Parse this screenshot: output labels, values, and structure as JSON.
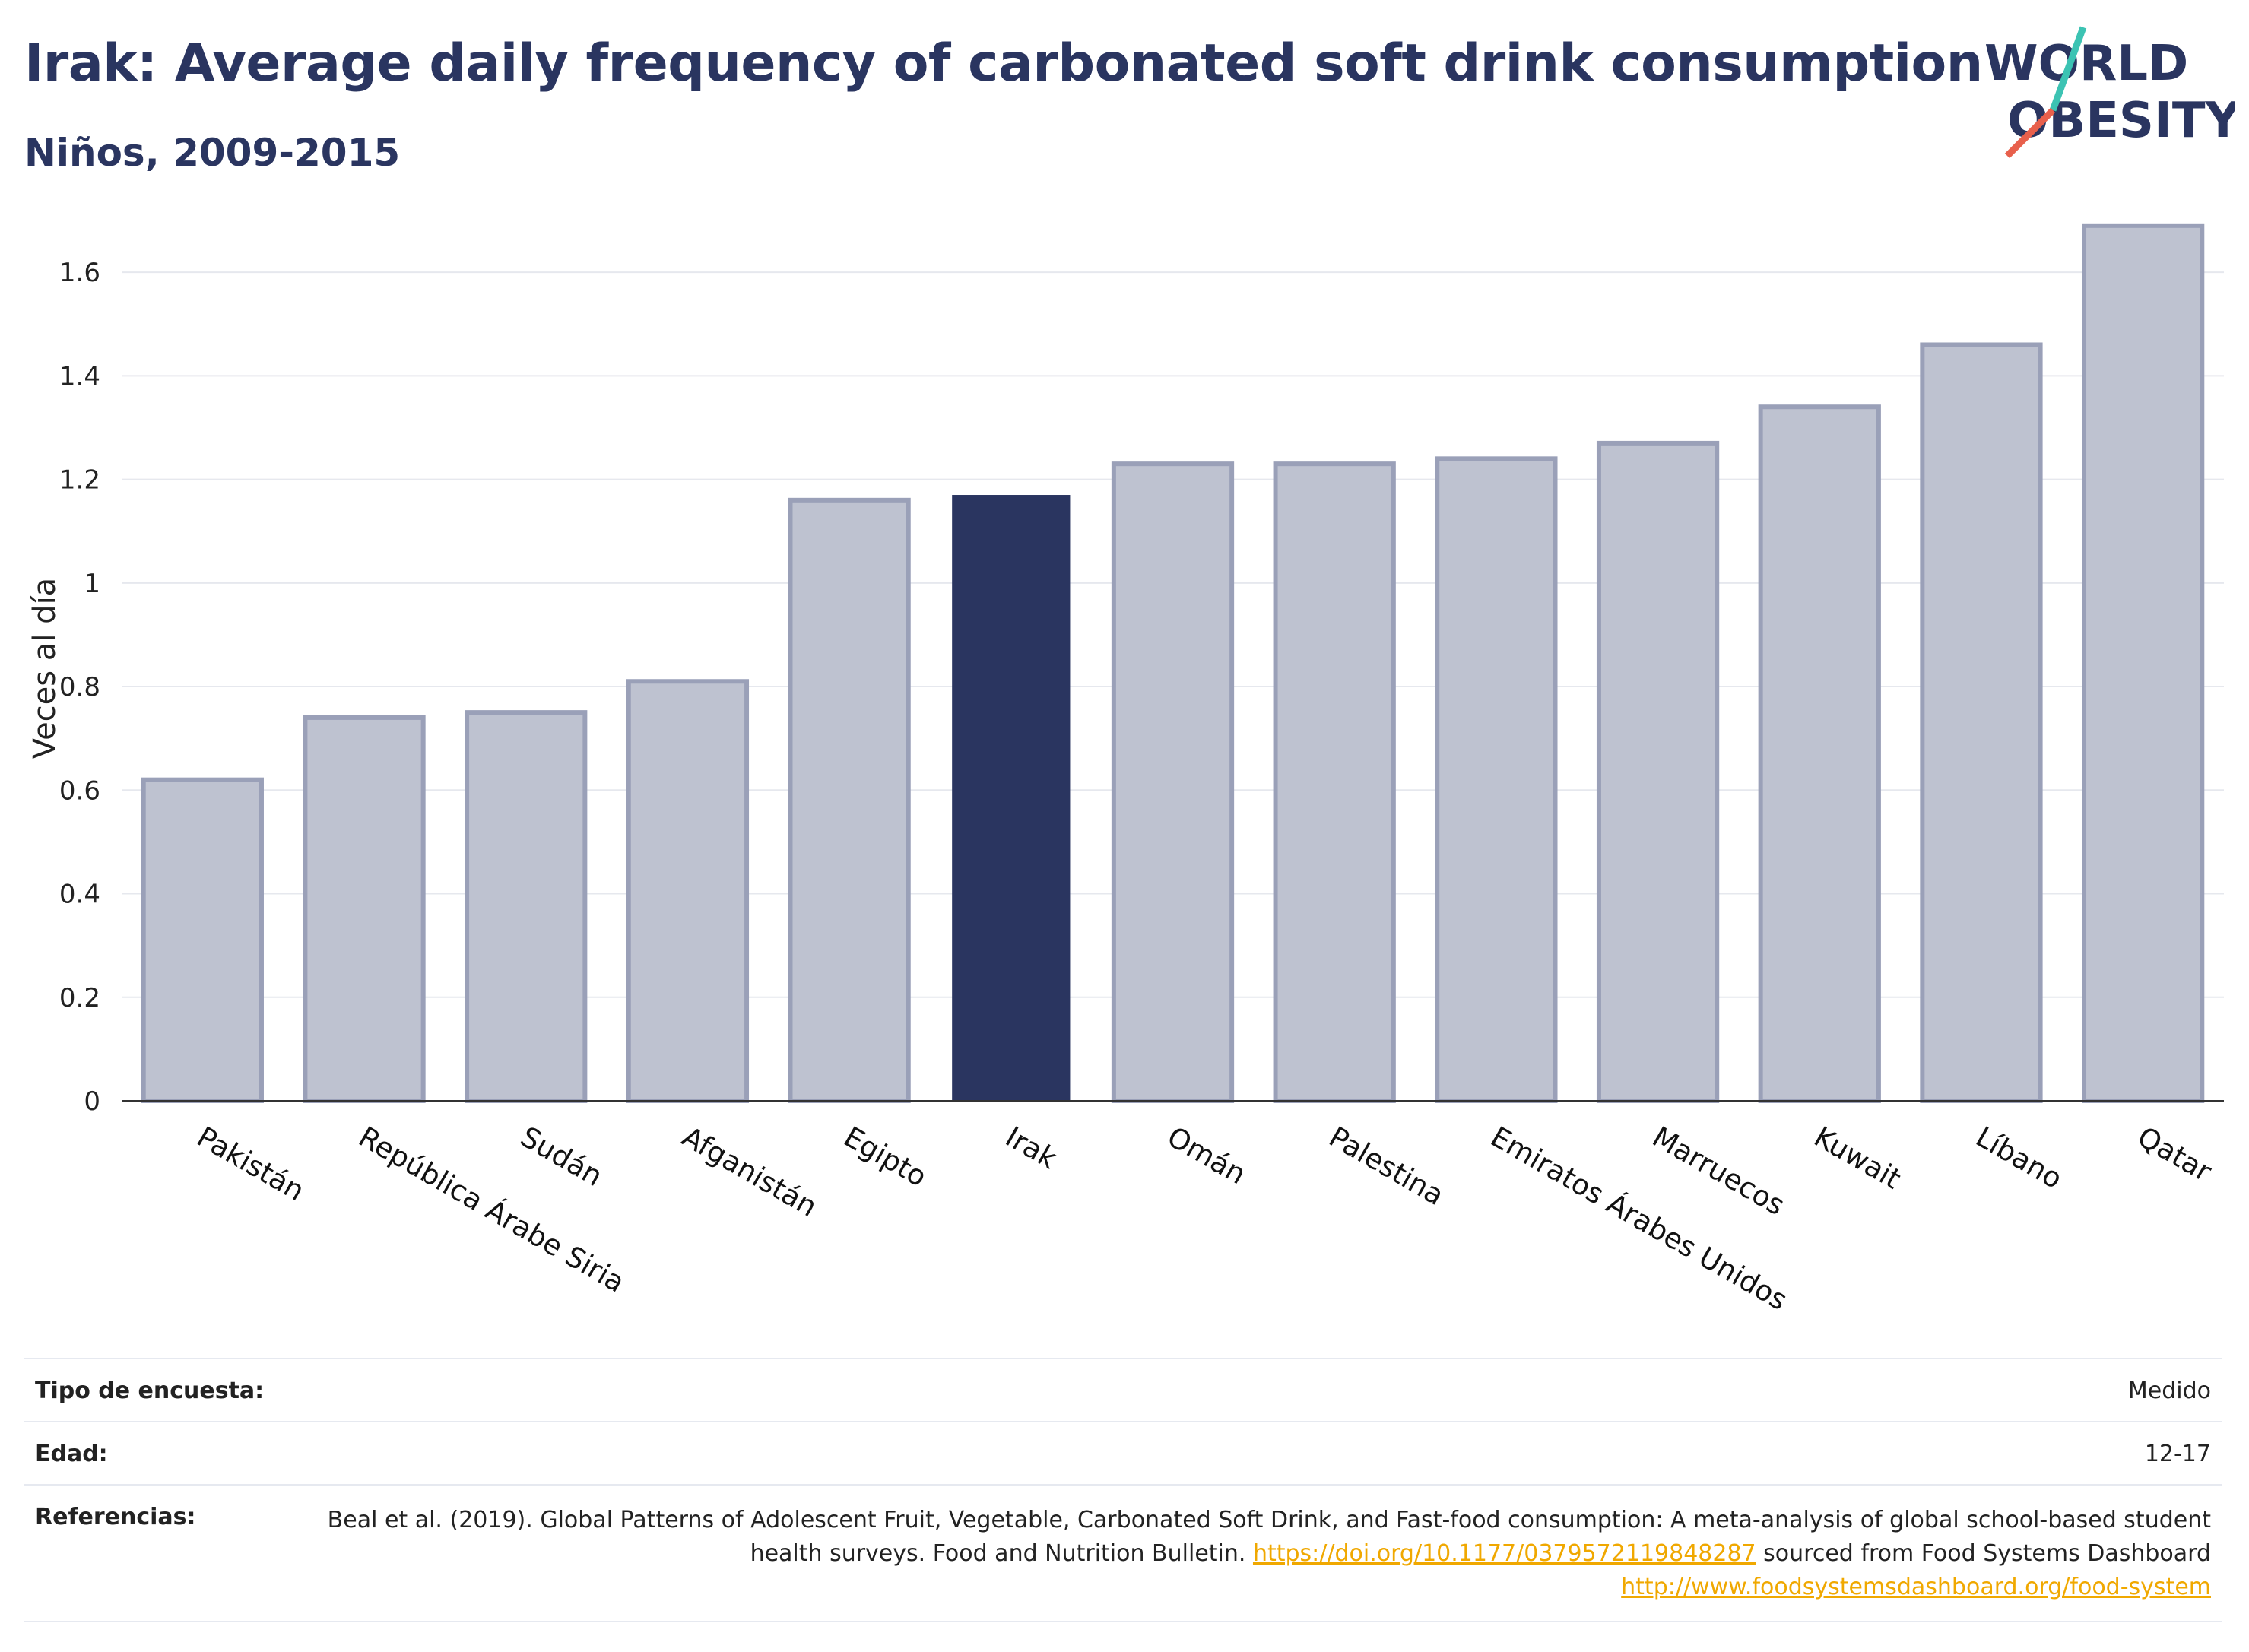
{
  "header": {
    "title": "Irak: Average daily frequency of carbonated soft drink consumption",
    "subtitle": "Niños, 2009-2015"
  },
  "logo": {
    "line1": "WORLD",
    "line2": "OBESITY",
    "text_color": "#2a3560",
    "slash_colors": [
      "#3cc3b3",
      "#e8604c"
    ]
  },
  "colors": {
    "highlight_bar": "#2a3560",
    "other_bar_fill": "#bec2d0",
    "other_bar_stroke": "#9aa0b8",
    "link": "#f0a800"
  },
  "chart_data": {
    "type": "bar",
    "title": "Irak: Average daily frequency of carbonated soft drink consumption",
    "subtitle": "Niños, 2009-2015",
    "xlabel": "",
    "ylabel": "Veces al día",
    "ylim": [
      0,
      1.7
    ],
    "yticks": [
      0,
      0.2,
      0.4,
      0.6,
      0.8,
      1,
      1.2,
      1.4,
      1.6
    ],
    "ytick_labels": [
      "0",
      "0.2",
      "0.4",
      "0.6",
      "0.8",
      "1",
      "1.2",
      "1.4",
      "1.6"
    ],
    "grid": true,
    "highlight": "Irak",
    "categories": [
      "Pakistán",
      "República Árabe Siria",
      "Sudán",
      "Afganistán",
      "Egipto",
      "Irak",
      "Omán",
      "Palestina",
      "Emiratos Árabes Unidos",
      "Marruecos",
      "Kuwait",
      "Líbano",
      "Qatar"
    ],
    "values": [
      0.62,
      0.74,
      0.75,
      0.81,
      1.16,
      1.17,
      1.23,
      1.23,
      1.24,
      1.27,
      1.34,
      1.46,
      1.69
    ]
  },
  "info_table": {
    "survey_type_label": "Tipo de encuesta:",
    "survey_type_value": "Medido",
    "age_label": "Edad:",
    "age_value": "12-17",
    "references_label": "Referencias:",
    "references_text_1": "Beal et al. (2019). Global Patterns of Adolescent Fruit, Vegetable, Carbonated Soft Drink, and Fast-food consumption: A meta-analysis of global school-based student health surveys. Food and Nutrition Bulletin. ",
    "references_link_1": "https://doi.org/10.1177/0379572119848287",
    "references_text_2": " sourced from Food Systems Dashboard ",
    "references_link_2": "http://www.foodsystemsdashboard.org/food-system"
  }
}
